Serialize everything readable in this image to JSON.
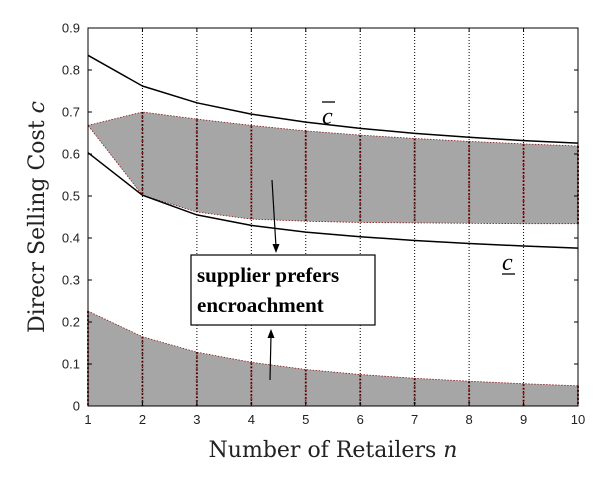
{
  "chart_data": {
    "type": "area",
    "title": "",
    "xlabel": "Number of Retailers",
    "xlabel_var": "n",
    "ylabel": "Direcr Selling Cost",
    "ylabel_var": "c",
    "xlim": [
      1,
      10
    ],
    "ylim": [
      0,
      0.9
    ],
    "xticks": [
      1,
      2,
      3,
      4,
      5,
      6,
      7,
      8,
      9,
      10
    ],
    "yticks": [
      0,
      0.1,
      0.2,
      0.3,
      0.4,
      0.5,
      0.6,
      0.7,
      0.8,
      0.9
    ],
    "grid": "vertical dotted at each integer n",
    "x": [
      1,
      2,
      3,
      4,
      5,
      6,
      7,
      8,
      9,
      10
    ],
    "curves": [
      {
        "label": "c̄",
        "values": [
          0.835,
          0.762,
          0.722,
          0.695,
          0.676,
          0.661,
          0.649,
          0.64,
          0.632,
          0.626
        ]
      },
      {
        "label": "c̲",
        "values": [
          0.603,
          0.502,
          0.455,
          0.43,
          0.414,
          0.403,
          0.394,
          0.387,
          0.381,
          0.376
        ]
      }
    ],
    "regions": [
      {
        "upper": [
          0.668,
          0.7,
          0.683,
          0.668,
          0.655,
          0.645,
          0.637,
          0.63,
          0.624,
          0.619
        ],
        "lower": [
          0.668,
          0.502,
          0.462,
          0.445,
          0.44,
          0.437,
          0.436,
          0.435,
          0.434,
          0.434
        ]
      },
      {
        "upper": [
          0.226,
          0.165,
          0.128,
          0.104,
          0.087,
          0.075,
          0.066,
          0.059,
          0.053,
          0.048
        ],
        "lower": [
          0,
          0,
          0,
          0,
          0,
          0,
          0,
          0,
          0,
          0
        ]
      }
    ],
    "annotation": {
      "lines": [
        "supplier prefers",
        "encroachment"
      ]
    },
    "colors": {
      "region_fill": "#a6a6a6",
      "region_edge": "#8b1a1a",
      "grid": "#000000",
      "curve": "#000000"
    }
  }
}
